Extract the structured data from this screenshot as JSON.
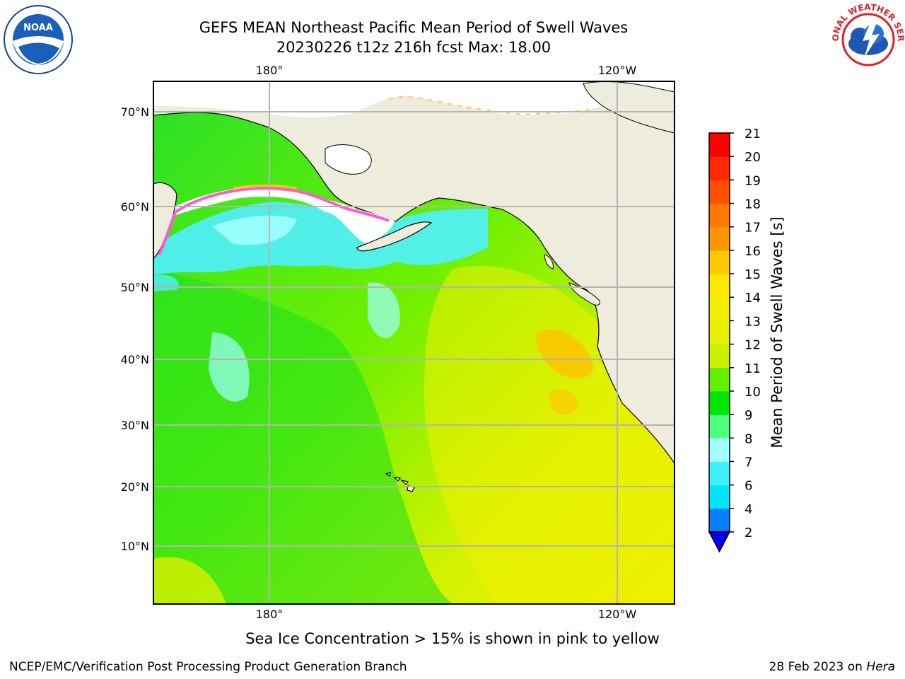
{
  "title_line1": "GEFS MEAN Northeast Pacific Mean Period of Swell Waves",
  "title_line2": "20230226 t12z 216h fcst   Max: 18.00",
  "map": {
    "lon_labels": [
      "180°",
      "120°W"
    ],
    "lat_labels": [
      "70°N",
      "60°N",
      "50°N",
      "40°N",
      "30°N",
      "20°N",
      "10°N"
    ],
    "colors": {
      "land": "#eeecdc",
      "ice_free_unknown": "#ffffff",
      "grid": "#b4b4b4"
    }
  },
  "colorbar": {
    "label": "Mean Period of Swell Waves [s]",
    "ticks": [
      "2",
      "4",
      "6",
      "7",
      "8",
      "9",
      "10",
      "11",
      "12",
      "13",
      "14",
      "15",
      "16",
      "17",
      "18",
      "19",
      "20",
      "21"
    ],
    "colors": [
      "#0050ff",
      "#0a7cff",
      "#00e6ff",
      "#40f0ff",
      "#a0ffff",
      "#50ff80",
      "#00e600",
      "#60f000",
      "#c8f000",
      "#e6f000",
      "#f0f000",
      "#ffe800",
      "#ffc800",
      "#ff9600",
      "#ff7800",
      "#ff5000",
      "#ff2800",
      "#ff0000"
    ]
  },
  "caption": "Sea Ice Concentration > 15% is shown in pink to yellow",
  "footer": {
    "left": "NCEP/EMC/Verification Post Processing Product Generation Branch",
    "date": "28 Feb 2023 on ",
    "host": "Hera"
  },
  "logos": {
    "left": "NOAA",
    "right": "NATIONAL WEATHER SERVICE"
  }
}
